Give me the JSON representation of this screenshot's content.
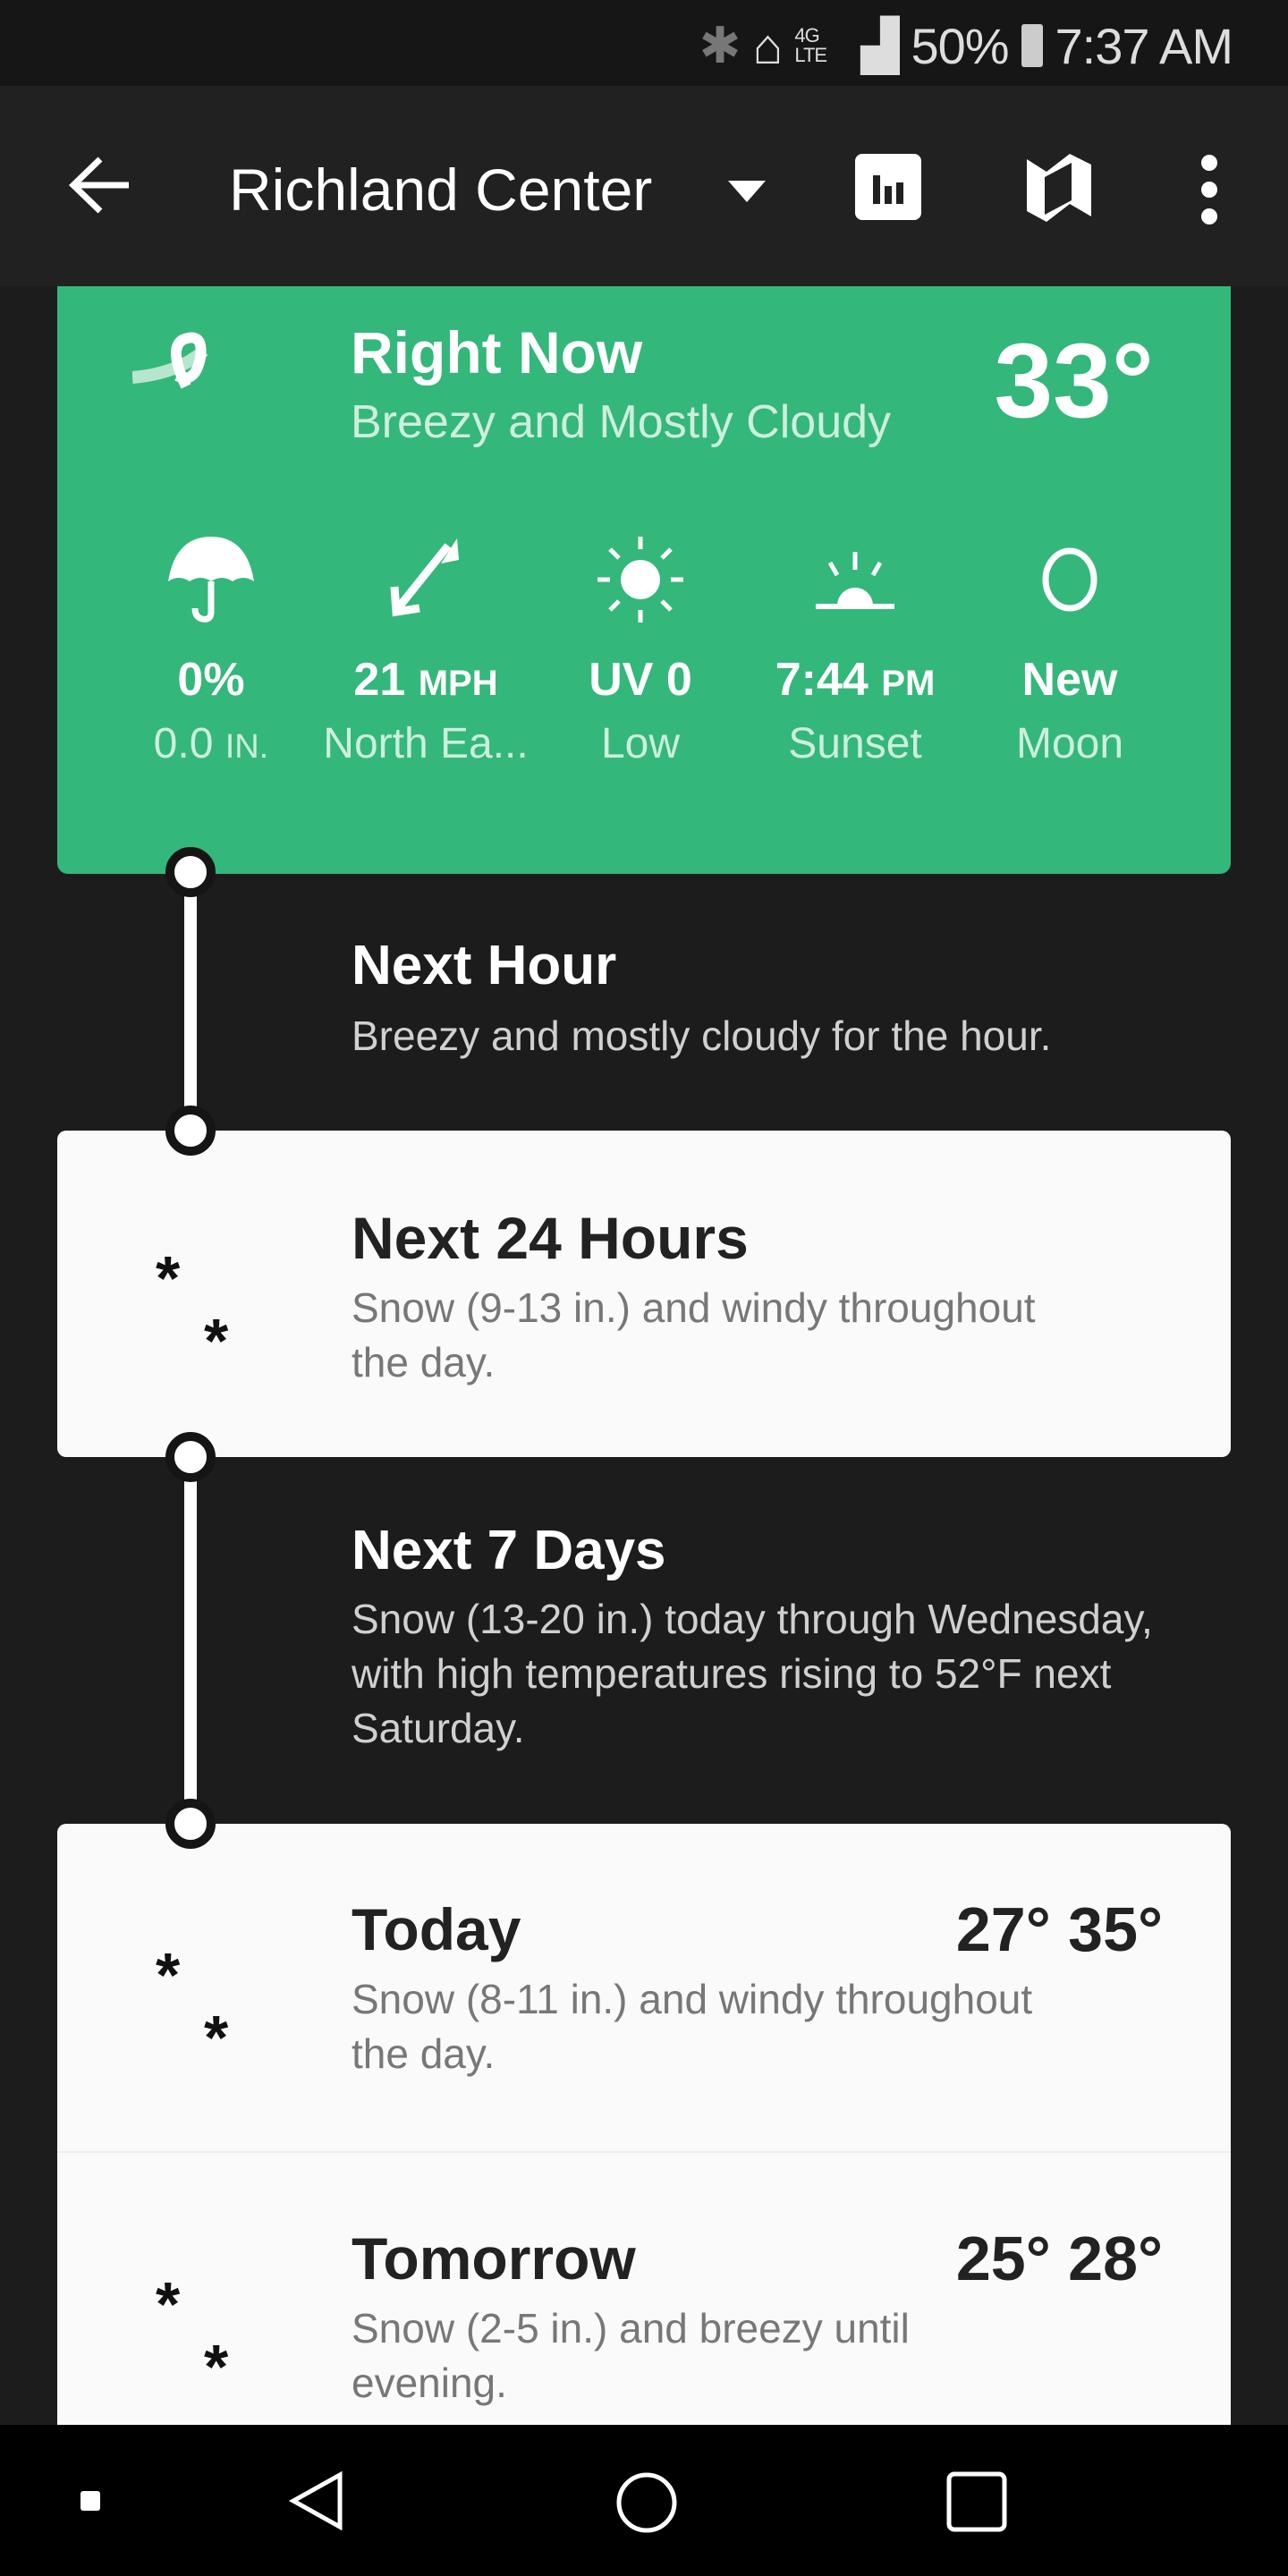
{
  "status_bar": {
    "battery": "50%",
    "time": "7:37 AM",
    "network": "4G LTE"
  },
  "header": {
    "title": "Richland Center"
  },
  "right_now": {
    "title": "Right Now",
    "summary": "Breezy and Mostly Cloudy",
    "temp": "33°",
    "stats": [
      {
        "icon": "umbrella-icon",
        "value": "0%",
        "unit": "",
        "label": "0.0",
        "label_unit": "IN."
      },
      {
        "icon": "wind-direction-icon",
        "value": "21",
        "unit": "MPH",
        "label": "North Ea...",
        "label_unit": ""
      },
      {
        "icon": "sun-icon",
        "value": "UV 0",
        "unit": "",
        "label": "Low",
        "label_unit": ""
      },
      {
        "icon": "sunset-icon",
        "value": "7:44",
        "unit": "PM",
        "label": "Sunset",
        "label_unit": ""
      },
      {
        "icon": "moon-icon",
        "value": "New",
        "unit": "",
        "label": "Moon",
        "label_unit": ""
      }
    ]
  },
  "next_hour": {
    "title": "Next Hour",
    "body": "Breezy and mostly cloudy for the hour."
  },
  "next_24": {
    "title": "Next 24 Hours",
    "body": "Snow (9-13 in.) and windy throughout the day."
  },
  "next_7": {
    "title": "Next 7 Days",
    "body": "Snow (13-20 in.) today through Wednesday, with high temperatures rising to 52°F next Saturday."
  },
  "days": [
    {
      "name": "Today",
      "body": "Snow (8-11 in.) and windy throughout the day.",
      "low": "27°",
      "high": "35°"
    },
    {
      "name": "Tomorrow",
      "body": "Snow (2-5 in.) and breezy until evening.",
      "low": "25°",
      "high": "28°"
    }
  ],
  "colors": {
    "accent": "#34b77a",
    "background": "#1c1c1d",
    "card": "#fafafa"
  }
}
